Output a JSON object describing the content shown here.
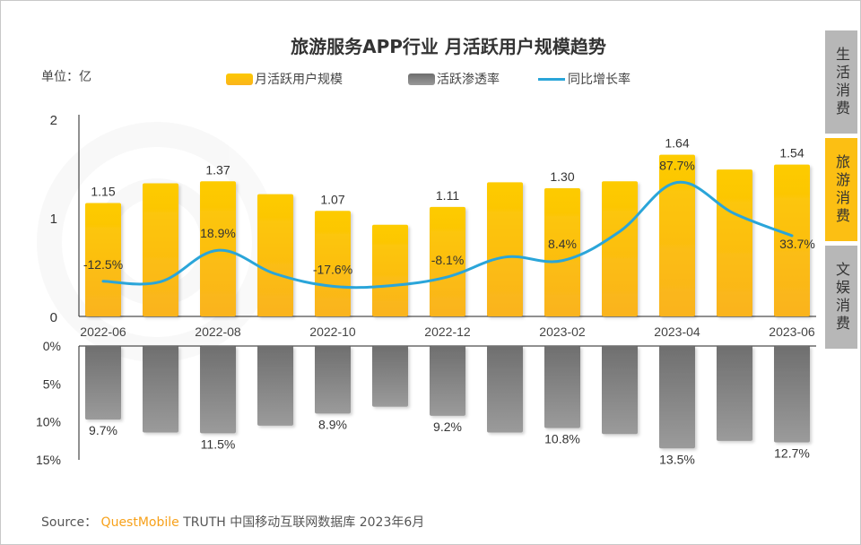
{
  "title": "旅游服务APP行业 月活跃用户规模趋势",
  "unit_label": "单位：亿",
  "legend": [
    {
      "label": "月活跃用户规模",
      "color": "#fcbf0e"
    },
    {
      "label": "活跃渗透率",
      "color": "#7f7f7f"
    },
    {
      "label": "同比增长率",
      "color": "#2aa5d9"
    }
  ],
  "side_tabs": [
    {
      "label": "生活消费",
      "active": false
    },
    {
      "label": "旅游消费",
      "active": true
    },
    {
      "label": "文娱消费",
      "active": false
    }
  ],
  "source": {
    "prefix": "Source：",
    "brand": "QuestMobile",
    "text": "TRUTH 中国移动互联网数据库 2023年6月"
  },
  "chart_data": [
    {
      "type": "bar",
      "title": "旅游服务APP行业 月活跃用户规模趋势",
      "ylabel": "单位：亿",
      "ylim": [
        0,
        2
      ],
      "yticks": [
        "0",
        "1",
        "2"
      ],
      "categories": [
        "2022-06",
        "2022-07",
        "2022-08",
        "2022-09",
        "2022-10",
        "2022-11",
        "2022-12",
        "2023-01",
        "2023-02",
        "2023-03",
        "2023-04",
        "2023-05",
        "2023-06"
      ],
      "xtick_labels": [
        "2022-06",
        "",
        "2022-08",
        "",
        "2022-10",
        "",
        "2022-12",
        "",
        "2023-02",
        "",
        "2023-04",
        "",
        "2023-06"
      ],
      "series": [
        {
          "name": "月活跃用户规模",
          "values": [
            1.15,
            1.35,
            1.37,
            1.24,
            1.07,
            0.93,
            1.11,
            1.36,
            1.3,
            1.37,
            1.64,
            1.49,
            1.54
          ],
          "labels": [
            "1.15",
            "",
            "1.37",
            "",
            "1.07",
            "",
            "1.11",
            "",
            "1.30",
            "",
            "1.64",
            "",
            "1.54"
          ]
        },
        {
          "name": "同比增长率",
          "type": "line",
          "values": [
            -12.5,
            -13,
            18.9,
            -5,
            -17.6,
            -17,
            -8.1,
            12,
            8.4,
            38,
            87.7,
            56,
            33.7
          ],
          "labels": [
            "-12.5%",
            "",
            "18.9%",
            "",
            "-17.6%",
            "",
            "-8.1%",
            "",
            "8.4%",
            "",
            "87.7%",
            "",
            "33.7%"
          ]
        }
      ]
    },
    {
      "type": "bar",
      "orientation": "downward",
      "ylim": [
        0,
        15
      ],
      "yticks": [
        "0%",
        "5%",
        "10%",
        "15%"
      ],
      "categories": [
        "2022-06",
        "2022-07",
        "2022-08",
        "2022-09",
        "2022-10",
        "2022-11",
        "2022-12",
        "2023-01",
        "2023-02",
        "2023-03",
        "2023-04",
        "2023-05",
        "2023-06"
      ],
      "series": [
        {
          "name": "活跃渗透率",
          "values": [
            9.7,
            11.4,
            11.5,
            10.5,
            8.9,
            8.0,
            9.2,
            11.4,
            10.8,
            11.6,
            13.5,
            12.5,
            12.7
          ],
          "labels": [
            "9.7%",
            "",
            "11.5%",
            "",
            "8.9%",
            "",
            "9.2%",
            "",
            "10.8%",
            "",
            "13.5%",
            "",
            "12.7%"
          ]
        }
      ]
    }
  ]
}
